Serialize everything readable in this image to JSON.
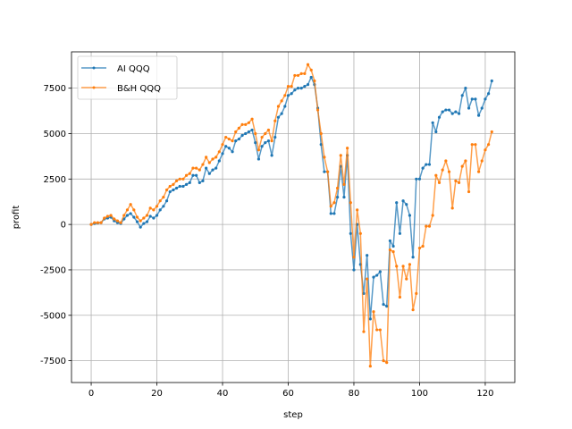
{
  "chart_data": {
    "type": "line",
    "title": "",
    "xlabel": "step",
    "ylabel": "profit",
    "xlim": [
      -6,
      129
    ],
    "ylim": [
      -8700,
      9500
    ],
    "xticks": [
      0,
      20,
      40,
      60,
      80,
      100,
      120
    ],
    "yticks": [
      -7500,
      -5000,
      -2500,
      0,
      2500,
      5000,
      7500
    ],
    "grid": true,
    "legend_position": "top-left",
    "series": [
      {
        "name": "AI QQQ",
        "color": "#1f77b4",
        "x": [
          0,
          1,
          2,
          3,
          4,
          5,
          6,
          7,
          8,
          9,
          10,
          11,
          12,
          13,
          14,
          15,
          16,
          17,
          18,
          19,
          20,
          21,
          22,
          23,
          24,
          25,
          26,
          27,
          28,
          29,
          30,
          31,
          32,
          33,
          34,
          35,
          36,
          37,
          38,
          39,
          40,
          41,
          42,
          43,
          44,
          45,
          46,
          47,
          48,
          49,
          50,
          51,
          52,
          53,
          54,
          55,
          56,
          57,
          58,
          59,
          60,
          61,
          62,
          63,
          64,
          65,
          66,
          67,
          68,
          69,
          70,
          71,
          72,
          73,
          74,
          75,
          76,
          77,
          78,
          79,
          80,
          81,
          82,
          83,
          84,
          85,
          86,
          87,
          88,
          89,
          90,
          91,
          92,
          93,
          94,
          95,
          96,
          97,
          98,
          99,
          100,
          101,
          102,
          103,
          104,
          105,
          106,
          107,
          108,
          109,
          110,
          111,
          112,
          113,
          114,
          115,
          116,
          117,
          118,
          119,
          120,
          121,
          122
        ],
        "y": [
          0,
          50,
          80,
          100,
          300,
          350,
          400,
          200,
          100,
          50,
          300,
          500,
          600,
          400,
          150,
          -150,
          50,
          150,
          450,
          350,
          500,
          800,
          1000,
          1300,
          1800,
          1900,
          2000,
          2100,
          2100,
          2200,
          2300,
          2700,
          2700,
          2300,
          2400,
          3100,
          2800,
          3000,
          3100,
          3500,
          3900,
          4300,
          4200,
          4000,
          4600,
          4700,
          4900,
          5000,
          5100,
          5200,
          4500,
          3600,
          4300,
          4500,
          4600,
          3800,
          4800,
          5900,
          6100,
          6500,
          7100,
          7200,
          7400,
          7500,
          7500,
          7600,
          7700,
          8100,
          7700,
          6400,
          4400,
          2900,
          2900,
          600,
          600,
          1500,
          3200,
          1500,
          3800,
          -500,
          -2500,
          0,
          -2200,
          -3800,
          -1700,
          -5200,
          -2900,
          -2800,
          -2600,
          -4400,
          -4500,
          -900,
          -1200,
          1200,
          -500,
          1300,
          1100,
          500,
          -1800,
          2500,
          2500,
          3100,
          3300,
          3300,
          5600,
          5100,
          5900,
          6200,
          6300,
          6300,
          6100,
          6200,
          6100,
          7100,
          7500,
          6400,
          6900,
          6900,
          6000,
          6400,
          6900,
          7200,
          7900
        ]
      },
      {
        "name": "B&H QQQ",
        "color": "#ff7f0e",
        "x": [
          0,
          1,
          2,
          3,
          4,
          5,
          6,
          7,
          8,
          9,
          10,
          11,
          12,
          13,
          14,
          15,
          16,
          17,
          18,
          19,
          20,
          21,
          22,
          23,
          24,
          25,
          26,
          27,
          28,
          29,
          30,
          31,
          32,
          33,
          34,
          35,
          36,
          37,
          38,
          39,
          40,
          41,
          42,
          43,
          44,
          45,
          46,
          47,
          48,
          49,
          50,
          51,
          52,
          53,
          54,
          55,
          56,
          57,
          58,
          59,
          60,
          61,
          62,
          63,
          64,
          65,
          66,
          67,
          68,
          69,
          70,
          71,
          72,
          73,
          74,
          75,
          76,
          77,
          78,
          79,
          80,
          81,
          82,
          83,
          84,
          85,
          86,
          87,
          88,
          89,
          90,
          91,
          92,
          93,
          94,
          95,
          96,
          97,
          98,
          99,
          100,
          101,
          102,
          103,
          104,
          105,
          106,
          107,
          108,
          109,
          110,
          111,
          112,
          113,
          114,
          115,
          116,
          117,
          118,
          119,
          120,
          121,
          122
        ],
        "y": [
          0,
          100,
          100,
          100,
          350,
          450,
          500,
          300,
          200,
          100,
          500,
          800,
          1100,
          800,
          400,
          200,
          350,
          500,
          900,
          800,
          1000,
          1300,
          1500,
          1900,
          2100,
          2200,
          2400,
          2500,
          2500,
          2700,
          2800,
          3100,
          3100,
          3000,
          3300,
          3700,
          3400,
          3600,
          3700,
          4000,
          4400,
          4800,
          4700,
          4600,
          5100,
          5300,
          5500,
          5500,
          5600,
          5800,
          5000,
          4100,
          4800,
          5000,
          5200,
          4600,
          5700,
          6500,
          6800,
          7100,
          7600,
          7600,
          8200,
          8200,
          8300,
          8300,
          8800,
          8500,
          7900,
          6300,
          5000,
          3700,
          2900,
          1000,
          1200,
          2000,
          3800,
          2200,
          4200,
          1200,
          -1800,
          800,
          -500,
          -5900,
          -3000,
          -7800,
          -4800,
          -5800,
          -5800,
          -7500,
          -7600,
          -1400,
          -1500,
          -2300,
          -4000,
          -2300,
          -3000,
          -2200,
          -4700,
          -3800,
          -1300,
          -1200,
          -100,
          -100,
          500,
          2700,
          2300,
          3000,
          3500,
          2900,
          900,
          2400,
          2300,
          3200,
          3500,
          1800,
          4400,
          4400,
          2900,
          3500,
          4100,
          4400,
          5100
        ]
      }
    ]
  }
}
